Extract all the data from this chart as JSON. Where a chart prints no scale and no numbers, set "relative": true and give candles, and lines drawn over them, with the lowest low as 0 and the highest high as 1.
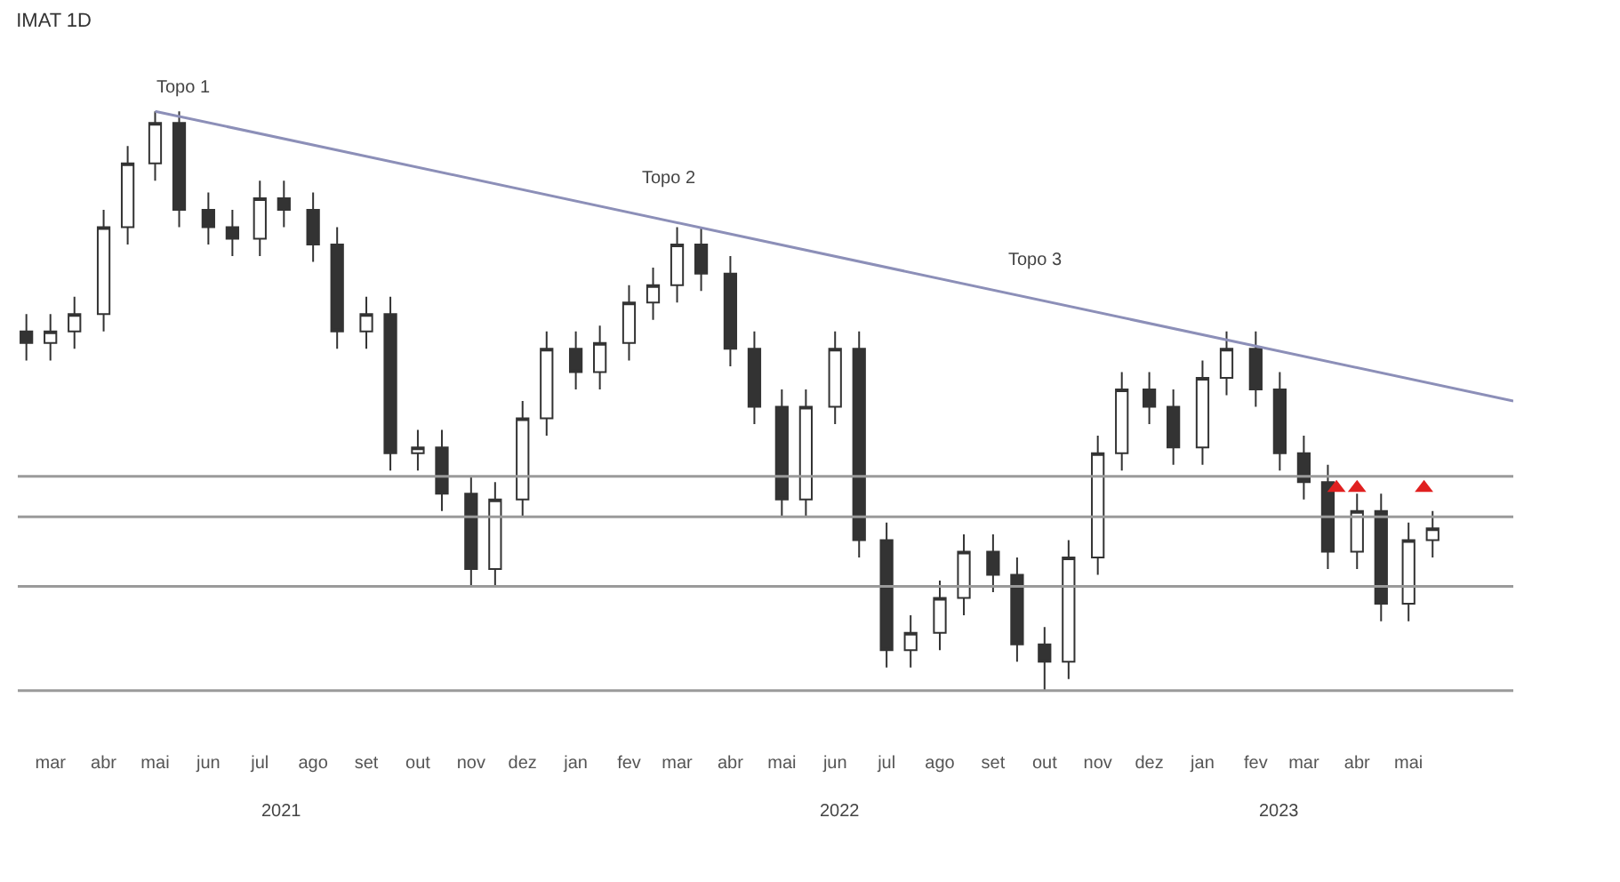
{
  "chart_data": {
    "type": "candlestick",
    "title": "IMAT 1D",
    "relative": true,
    "tick_labels": "x",
    "x": [
      "2021-02-15",
      "2021-03-01",
      "2021-03-15",
      "2021-04-01",
      "2021-04-15",
      "2021-05-01",
      "2021-05-15",
      "2021-06-01",
      "2021-06-15",
      "2021-07-01",
      "2021-07-15",
      "2021-08-01",
      "2021-08-15",
      "2021-09-01",
      "2021-09-15",
      "2021-10-01",
      "2021-10-15",
      "2021-11-01",
      "2021-11-15",
      "2021-12-01",
      "2021-12-15",
      "2022-01-01",
      "2022-01-15",
      "2022-02-01",
      "2022-02-15",
      "2022-03-01",
      "2022-03-15",
      "2022-04-01",
      "2022-04-15",
      "2022-05-01",
      "2022-05-15",
      "2022-06-01",
      "2022-06-15",
      "2022-07-01",
      "2022-07-15",
      "2022-08-01",
      "2022-08-15",
      "2022-09-01",
      "2022-09-15",
      "2022-10-01",
      "2022-10-15",
      "2022-11-01",
      "2022-11-15",
      "2022-12-01",
      "2022-12-15",
      "2023-01-01",
      "2023-01-15",
      "2023-02-01",
      "2023-02-15",
      "2023-03-01",
      "2023-03-15",
      "2023-04-01",
      "2023-04-15",
      "2023-05-01",
      "2023-05-15"
    ],
    "color": "#333333",
    "ohlc": [
      [
        0.62,
        0.65,
        0.57,
        0.6
      ],
      [
        0.6,
        0.65,
        0.57,
        0.62
      ],
      [
        0.62,
        0.68,
        0.59,
        0.65
      ],
      [
        0.65,
        0.83,
        0.62,
        0.8
      ],
      [
        0.8,
        0.94,
        0.77,
        0.91
      ],
      [
        0.91,
        1.0,
        0.88,
        0.98
      ],
      [
        0.98,
        1.0,
        0.8,
        0.83
      ],
      [
        0.83,
        0.86,
        0.77,
        0.8
      ],
      [
        0.8,
        0.83,
        0.75,
        0.78
      ],
      [
        0.78,
        0.88,
        0.75,
        0.85
      ],
      [
        0.85,
        0.88,
        0.8,
        0.83
      ],
      [
        0.83,
        0.86,
        0.74,
        0.77
      ],
      [
        0.77,
        0.8,
        0.59,
        0.62
      ],
      [
        0.62,
        0.68,
        0.59,
        0.65
      ],
      [
        0.65,
        0.68,
        0.38,
        0.41
      ],
      [
        0.41,
        0.45,
        0.38,
        0.42
      ],
      [
        0.42,
        0.45,
        0.31,
        0.34
      ],
      [
        0.34,
        0.37,
        0.18,
        0.21
      ],
      [
        0.21,
        0.36,
        0.18,
        0.33
      ],
      [
        0.33,
        0.5,
        0.3,
        0.47
      ],
      [
        0.47,
        0.62,
        0.44,
        0.59
      ],
      [
        0.59,
        0.62,
        0.52,
        0.55
      ],
      [
        0.55,
        0.63,
        0.52,
        0.6
      ],
      [
        0.6,
        0.7,
        0.57,
        0.67
      ],
      [
        0.67,
        0.73,
        0.64,
        0.7
      ],
      [
        0.7,
        0.8,
        0.67,
        0.77
      ],
      [
        0.77,
        0.8,
        0.69,
        0.72
      ],
      [
        0.72,
        0.75,
        0.56,
        0.59
      ],
      [
        0.59,
        0.62,
        0.46,
        0.49
      ],
      [
        0.49,
        0.52,
        0.3,
        0.33
      ],
      [
        0.33,
        0.52,
        0.3,
        0.49
      ],
      [
        0.49,
        0.62,
        0.46,
        0.59
      ],
      [
        0.59,
        0.62,
        0.23,
        0.26
      ],
      [
        0.26,
        0.29,
        0.04,
        0.07
      ],
      [
        0.07,
        0.13,
        0.04,
        0.1
      ],
      [
        0.1,
        0.19,
        0.07,
        0.16
      ],
      [
        0.16,
        0.27,
        0.13,
        0.24
      ],
      [
        0.24,
        0.27,
        0.17,
        0.2
      ],
      [
        0.2,
        0.23,
        0.05,
        0.08
      ],
      [
        0.08,
        0.11,
        0.0,
        0.05
      ],
      [
        0.05,
        0.26,
        0.02,
        0.23
      ],
      [
        0.23,
        0.44,
        0.2,
        0.41
      ],
      [
        0.41,
        0.55,
        0.38,
        0.52
      ],
      [
        0.52,
        0.55,
        0.46,
        0.49
      ],
      [
        0.49,
        0.52,
        0.39,
        0.42
      ],
      [
        0.42,
        0.57,
        0.39,
        0.54
      ],
      [
        0.54,
        0.62,
        0.51,
        0.59
      ],
      [
        0.59,
        0.62,
        0.49,
        0.52
      ],
      [
        0.52,
        0.55,
        0.38,
        0.41
      ],
      [
        0.41,
        0.44,
        0.33,
        0.36
      ],
      [
        0.36,
        0.39,
        0.21,
        0.24
      ],
      [
        0.24,
        0.34,
        0.21,
        0.31
      ],
      [
        0.31,
        0.34,
        0.12,
        0.15
      ],
      [
        0.15,
        0.29,
        0.12,
        0.26
      ],
      [
        0.26,
        0.31,
        0.23,
        0.28
      ]
    ],
    "series": [
      {
        "type": "line",
        "color": "#8c8fb8",
        "x": [
          "2021-05-01",
          "2023-07-01"
        ],
        "values": [
          1.0,
          0.5
        ],
        "line_style": "solid",
        "marker": "none"
      },
      {
        "type": "scatter",
        "color": "#e02020",
        "x": [
          "2023-03-20",
          "2023-04-01",
          "2023-05-10"
        ],
        "values": [
          0.35,
          0.35,
          0.35
        ],
        "marker": "triangle"
      }
    ],
    "ref_lines": [
      {
        "axis": "y",
        "value": 0.37,
        "color": "#9a9a9a"
      },
      {
        "axis": "y",
        "value": 0.3,
        "color": "#9a9a9a"
      },
      {
        "axis": "y",
        "value": 0.18,
        "color": "#9a9a9a"
      },
      {
        "axis": "y",
        "value": 0.0,
        "color": "#9a9a9a"
      }
    ],
    "xticks": [
      {
        "value": "2021-03-01",
        "label": "mar"
      },
      {
        "value": "2021-04-01",
        "label": "abr"
      },
      {
        "value": "2021-05-01",
        "label": "mai"
      },
      {
        "value": "2021-06-01",
        "label": "jun"
      },
      {
        "value": "2021-07-01",
        "label": "jul"
      },
      {
        "value": "2021-08-01",
        "label": "ago"
      },
      {
        "value": "2021-09-01",
        "label": "set"
      },
      {
        "value": "2021-10-01",
        "label": "out"
      },
      {
        "value": "2021-11-01",
        "label": "nov"
      },
      {
        "value": "2021-12-01",
        "label": "dez"
      },
      {
        "value": "2022-01-01",
        "label": "jan"
      },
      {
        "value": "2022-02-01",
        "label": "fev"
      },
      {
        "value": "2022-03-01",
        "label": "mar"
      },
      {
        "value": "2022-04-01",
        "label": "abr"
      },
      {
        "value": "2022-05-01",
        "label": "mai"
      },
      {
        "value": "2022-06-01",
        "label": "jun"
      },
      {
        "value": "2022-07-01",
        "label": "jul"
      },
      {
        "value": "2022-08-01",
        "label": "ago"
      },
      {
        "value": "2022-09-01",
        "label": "set"
      },
      {
        "value": "2022-10-01",
        "label": "out"
      },
      {
        "value": "2022-11-01",
        "label": "nov"
      },
      {
        "value": "2022-12-01",
        "label": "dez"
      },
      {
        "value": "2023-01-01",
        "label": "jan"
      },
      {
        "value": "2023-02-01",
        "label": "fev"
      },
      {
        "value": "2023-03-01",
        "label": "mar"
      },
      {
        "value": "2023-04-01",
        "label": "abr"
      },
      {
        "value": "2023-05-01",
        "label": "mai"
      }
    ],
    "xlim": [
      "2021-02-10",
      "2023-07-01"
    ],
    "annotations": [
      "Topo 1",
      "Topo 2",
      "Topo 3",
      "2021",
      "2022",
      "2023"
    ]
  }
}
